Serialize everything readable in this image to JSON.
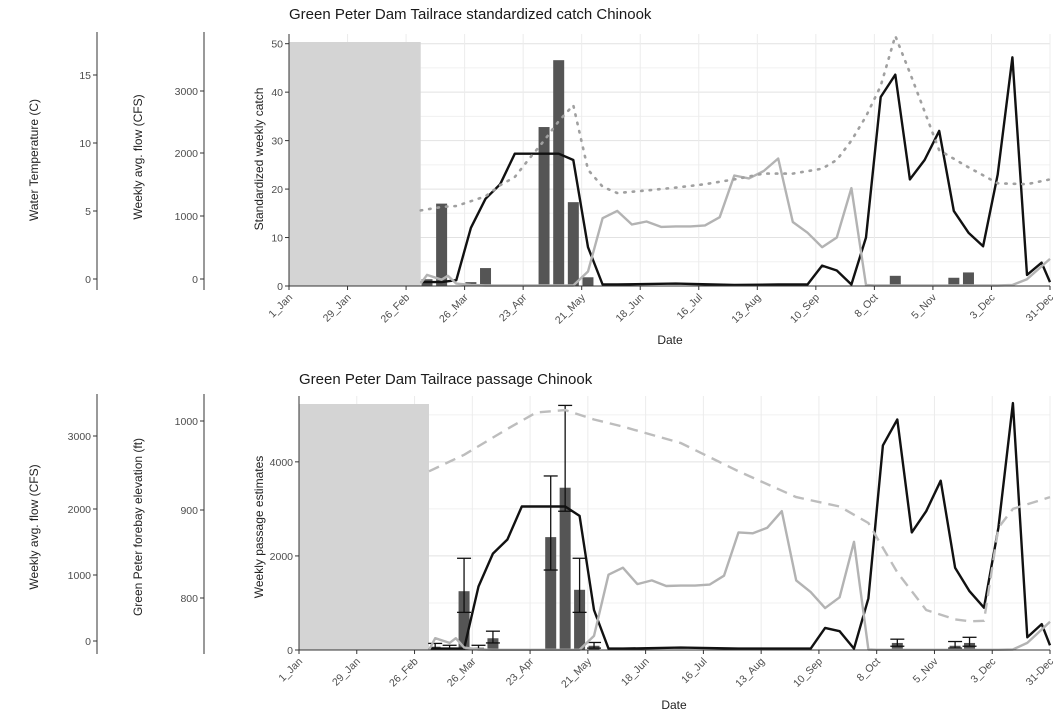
{
  "chart_data": [
    {
      "type": "bar",
      "title": "Green Peter Dam Tailrace standardized catch Chinook",
      "xlabel": "Date",
      "ylabel": "Standardized weekly catch",
      "ylim": [
        0,
        52
      ],
      "yticks": [
        0,
        10,
        20,
        30,
        40,
        50
      ],
      "xlim": [
        1,
        365
      ],
      "x_tick_days": [
        1,
        29,
        57,
        85,
        113,
        141,
        169,
        197,
        225,
        253,
        281,
        309,
        337,
        365
      ],
      "x_tick_labels": [
        "1_Jan",
        "29_Jan",
        "26_Feb",
        "26_Mar",
        "23_Apr",
        "21_May",
        "18_Jun",
        "16_Jul",
        "13_Aug",
        "10_Sep",
        "8_Oct",
        "5_Nov",
        "3_Dec",
        "31-Dec"
      ],
      "grid": true,
      "shaded_region": {
        "x0": 1,
        "x1": 64
      },
      "bars": {
        "days": [
          67,
          74,
          88,
          95,
          123,
          130,
          137,
          144,
          291,
          319,
          326
        ],
        "values": [
          1.4,
          17.0,
          0.8,
          3.7,
          32.8,
          46.6,
          17.3,
          1.8,
          2.1,
          1.7,
          2.8
        ]
      },
      "side_axes": [
        {
          "label": "Water Temperature (C)",
          "ticks": [
            0,
            5,
            10,
            15
          ]
        },
        {
          "label": "Weekly avg. flow (CFS)",
          "ticks": [
            0,
            1000,
            2000,
            3000
          ]
        }
      ],
      "series": [
        {
          "style": "black-solid",
          "x": [
            64,
            67,
            74,
            81,
            88,
            95,
            102,
            109,
            116,
            123,
            130,
            137,
            144,
            151,
            158,
            186,
            214,
            235,
            249,
            256,
            263,
            270,
            277,
            284,
            291,
            298,
            305,
            312,
            319,
            326,
            333,
            340,
            347,
            354,
            361,
            365
          ],
          "y": [
            0.8,
            0.8,
            0.8,
            1.2,
            12,
            18,
            21,
            27.3,
            27.3,
            27.3,
            27.3,
            26,
            8,
            0.3,
            0.3,
            0.5,
            0.2,
            0.3,
            0.3,
            4.2,
            3.2,
            0.3,
            10,
            39,
            43.6,
            22,
            26,
            32,
            15.5,
            11,
            8.2,
            23,
            47.2,
            2.3,
            4.8,
            0.8
          ]
        },
        {
          "style": "gray-solid",
          "x": [
            64,
            67,
            74,
            77,
            81,
            88,
            95,
            102,
            109,
            116,
            123,
            130,
            137,
            144,
            151,
            158,
            165,
            172,
            179,
            186,
            193,
            200,
            207,
            214,
            221,
            228,
            235,
            242,
            249,
            256,
            263,
            270,
            277,
            281,
            284,
            291,
            298,
            305,
            312,
            319,
            326,
            333,
            340,
            347,
            354,
            365
          ],
          "y": [
            0.5,
            2.3,
            1.3,
            2.1,
            0.5,
            0.2,
            0.1,
            0.1,
            0.1,
            0.1,
            0.1,
            0.1,
            0.1,
            3,
            14,
            15.5,
            12.7,
            13.3,
            12.2,
            12.3,
            12.3,
            12.5,
            14.2,
            22.8,
            22.2,
            23.7,
            26.3,
            13.2,
            11,
            8,
            10,
            20.2,
            0.2,
            0.1,
            0.1,
            0.1,
            0.1,
            0.1,
            0.1,
            0.1,
            0.1,
            0.1,
            0.1,
            0.2,
            1.4,
            5.6
          ]
        },
        {
          "style": "gray-dotted",
          "x": [
            64,
            74,
            81,
            88,
            95,
            102,
            109,
            116,
            123,
            130,
            137,
            144,
            151,
            158,
            172,
            186,
            200,
            214,
            228,
            242,
            256,
            263,
            270,
            277,
            284,
            291,
            298,
            305,
            312,
            326,
            340,
            354,
            365
          ],
          "y": [
            15.6,
            16.3,
            16.5,
            17.5,
            18.5,
            20.8,
            22.5,
            26.3,
            30,
            34,
            37.3,
            24,
            20.5,
            19.2,
            19.7,
            20.3,
            21,
            22,
            23.2,
            23.2,
            24.2,
            26,
            30,
            35,
            41.3,
            51.6,
            44,
            36,
            28,
            24.5,
            21.2,
            21,
            22
          ]
        }
      ]
    },
    {
      "type": "bar",
      "title": "Green Peter Dam Tailrace passage Chinook",
      "xlabel": "Date",
      "ylabel": "Weekly passage estimates",
      "ylim": [
        0,
        5400
      ],
      "yticks": [
        0,
        2000,
        4000
      ],
      "xlim": [
        1,
        365
      ],
      "x_tick_days": [
        1,
        29,
        57,
        85,
        113,
        141,
        169,
        197,
        225,
        253,
        281,
        309,
        337,
        365
      ],
      "x_tick_labels": [
        "1_Jan",
        "29_Jan",
        "26_Feb",
        "26_Mar",
        "23_Apr",
        "21_May",
        "18_Jun",
        "16_Jul",
        "13_Aug",
        "10_Sep",
        "8_Oct",
        "5_Nov",
        "3_Dec",
        "31-Dec"
      ],
      "grid": true,
      "shaded_region": {
        "x0": 1,
        "x1": 64
      },
      "bars": {
        "days": [
          67,
          74,
          81,
          88,
          95,
          123,
          130,
          137,
          144,
          291,
          319,
          326
        ],
        "values": [
          70,
          50,
          1250,
          50,
          250,
          2400,
          3450,
          1280,
          90,
          150,
          90,
          150
        ],
        "err_low": [
          20,
          10,
          800,
          20,
          150,
          1700,
          2950,
          800,
          40,
          80,
          40,
          80
        ],
        "err_high": [
          140,
          100,
          1950,
          100,
          400,
          3700,
          5200,
          1950,
          160,
          230,
          180,
          270
        ]
      },
      "side_axes": [
        {
          "label": "Weekly avg. flow (CFS)",
          "ticks": [
            0,
            1000,
            2000,
            3000
          ]
        },
        {
          "label": "Green Peter forebay elevation (ft)",
          "ticks": [
            800,
            900,
            1000
          ]
        }
      ],
      "series": [
        {
          "style": "black-solid",
          "x": [
            64,
            67,
            74,
            81,
            88,
            95,
            102,
            109,
            116,
            123,
            130,
            137,
            144,
            151,
            158,
            186,
            214,
            235,
            249,
            256,
            263,
            270,
            277,
            284,
            291,
            298,
            305,
            312,
            319,
            326,
            333,
            340,
            347,
            354,
            361,
            365
          ],
          "y": [
            30,
            30,
            30,
            30,
            1350,
            2050,
            2350,
            3050,
            3050,
            3050,
            3050,
            2850,
            850,
            30,
            30,
            50,
            30,
            30,
            30,
            470,
            400,
            30,
            1100,
            4350,
            4900,
            2500,
            2950,
            3600,
            1750,
            1250,
            900,
            2600,
            5250,
            270,
            550,
            100
          ]
        },
        {
          "style": "gray-solid",
          "x": [
            64,
            67,
            74,
            77,
            81,
            88,
            95,
            102,
            109,
            116,
            123,
            130,
            137,
            144,
            151,
            158,
            165,
            172,
            179,
            186,
            193,
            200,
            207,
            214,
            221,
            228,
            235,
            242,
            249,
            256,
            263,
            270,
            277,
            281,
            284,
            291,
            298,
            305,
            312,
            319,
            326,
            333,
            340,
            347,
            354,
            365
          ],
          "y": [
            0,
            250,
            150,
            250,
            50,
            10,
            5,
            5,
            5,
            5,
            5,
            5,
            5,
            300,
            1600,
            1750,
            1400,
            1480,
            1360,
            1370,
            1370,
            1390,
            1580,
            2500,
            2480,
            2600,
            2950,
            1480,
            1230,
            890,
            1120,
            2300,
            10,
            5,
            5,
            5,
            5,
            5,
            5,
            5,
            5,
            5,
            5,
            10,
            150,
            600
          ]
        },
        {
          "style": "gray-dashed",
          "x": [
            64,
            81,
            102,
            116,
            130,
            144,
            158,
            186,
            214,
            242,
            263,
            277,
            291,
            305,
            319,
            326,
            333,
            340,
            347,
            365
          ],
          "y": [
            3800,
            4150,
            4700,
            5050,
            5100,
            4900,
            4750,
            4400,
            3800,
            3250,
            3050,
            2700,
            1650,
            850,
            650,
            610,
            620,
            2600,
            3000,
            3250
          ]
        }
      ]
    }
  ]
}
